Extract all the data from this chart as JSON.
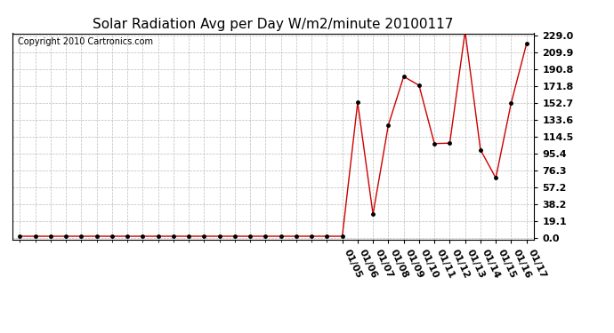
{
  "title": "Solar Radiation Avg per Day W/m2/minute 20100117",
  "copyright": "Copyright 2010 Cartronics.com",
  "x_labels": [
    "01/05",
    "01/06",
    "01/07",
    "01/08",
    "01/09",
    "01/10",
    "01/11",
    "01/12",
    "01/13",
    "01/14",
    "01/15",
    "01/16",
    "01/17"
  ],
  "n_before": 21,
  "values_before": [
    2.0,
    2.0,
    2.0,
    2.0,
    2.0,
    2.0,
    2.0,
    2.0,
    2.0,
    2.0,
    2.0,
    2.0,
    2.0,
    2.0,
    2.0,
    2.0,
    2.0,
    2.0,
    2.0,
    2.0,
    2.0
  ],
  "values_after": [
    2.0,
    153.5,
    27.0,
    128.0,
    183.0,
    173.0,
    107.0,
    107.5,
    234.0,
    100.0,
    68.0,
    153.0,
    220.0
  ],
  "yticks": [
    0.0,
    19.1,
    38.2,
    57.2,
    76.3,
    95.4,
    114.5,
    133.6,
    152.7,
    171.8,
    190.8,
    209.9,
    229.0
  ],
  "line_color": "#cc0000",
  "marker_color": "#000000",
  "bg_color": "#ffffff",
  "grid_color": "#bbbbbb",
  "title_fontsize": 11,
  "copyright_fontsize": 7,
  "tick_label_fontsize": 8,
  "ylim": [
    0.0,
    229.0
  ]
}
